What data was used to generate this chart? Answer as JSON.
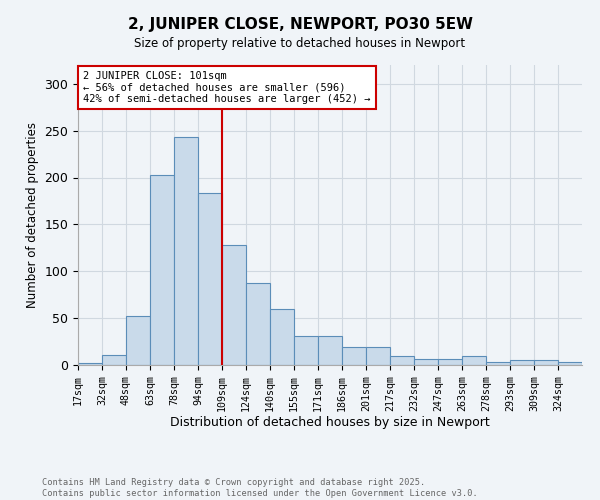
{
  "title": "2, JUNIPER CLOSE, NEWPORT, PO30 5EW",
  "subtitle": "Size of property relative to detached houses in Newport",
  "xlabel": "Distribution of detached houses by size in Newport",
  "ylabel": "Number of detached properties",
  "bar_color": "#c9daea",
  "bar_edge_color": "#5b8db8",
  "grid_color": "#d0d8e0",
  "background_color": "#f0f4f8",
  "vline_color": "#cc0000",
  "vline_bin_index": 6,
  "categories": [
    "17sqm",
    "32sqm",
    "48sqm",
    "63sqm",
    "78sqm",
    "94sqm",
    "109sqm",
    "124sqm",
    "140sqm",
    "155sqm",
    "171sqm",
    "186sqm",
    "201sqm",
    "217sqm",
    "232sqm",
    "247sqm",
    "263sqm",
    "278sqm",
    "293sqm",
    "309sqm",
    "324sqm"
  ],
  "values": [
    2,
    11,
    52,
    203,
    243,
    183,
    128,
    88,
    60,
    31,
    31,
    19,
    19,
    10,
    6,
    6,
    10,
    3,
    5,
    5,
    3
  ],
  "annotation_text": "2 JUNIPER CLOSE: 101sqm\n← 56% of detached houses are smaller (596)\n42% of semi-detached houses are larger (452) →",
  "annotation_box_color": "white",
  "annotation_box_edge": "#cc0000",
  "footer_line1": "Contains HM Land Registry data © Crown copyright and database right 2025.",
  "footer_line2": "Contains public sector information licensed under the Open Government Licence v3.0.",
  "ylim": [
    0,
    320
  ],
  "yticks": [
    0,
    50,
    100,
    150,
    200,
    250,
    300
  ]
}
